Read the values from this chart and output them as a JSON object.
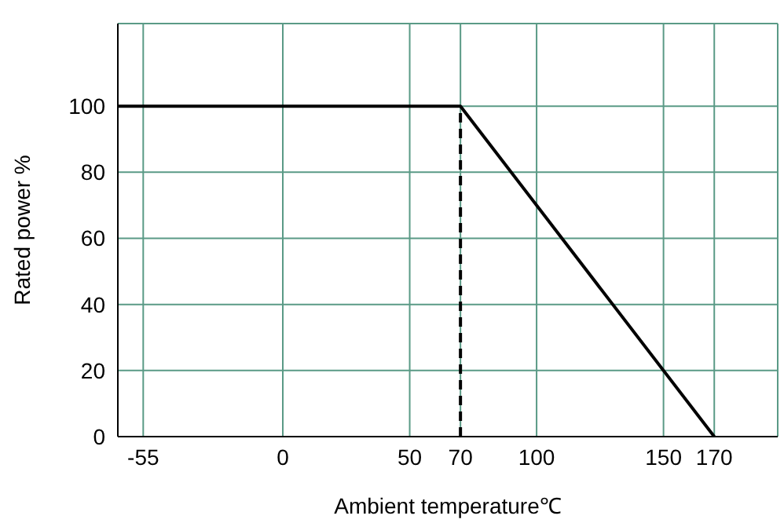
{
  "chart_data": {
    "type": "line",
    "xlabel": "Ambient temperature℃",
    "ylabel": "Rated power %",
    "series": [
      {
        "x": [
          -65,
          70,
          170
        ],
        "values": [
          100,
          100,
          0
        ],
        "color": "#000000"
      },
      {
        "x": [
          70,
          70
        ],
        "values": [
          0,
          100
        ],
        "color": "#000000",
        "line_style": "dashed"
      }
    ],
    "xlim": [
      -65,
      195
    ],
    "xticks": [
      -55,
      0,
      50,
      70,
      100,
      150,
      170
    ],
    "ylim": [
      0,
      125
    ],
    "yticks": [
      0,
      20,
      40,
      60,
      80,
      100
    ],
    "grid": true,
    "marker": "none",
    "line_style": "solid"
  }
}
